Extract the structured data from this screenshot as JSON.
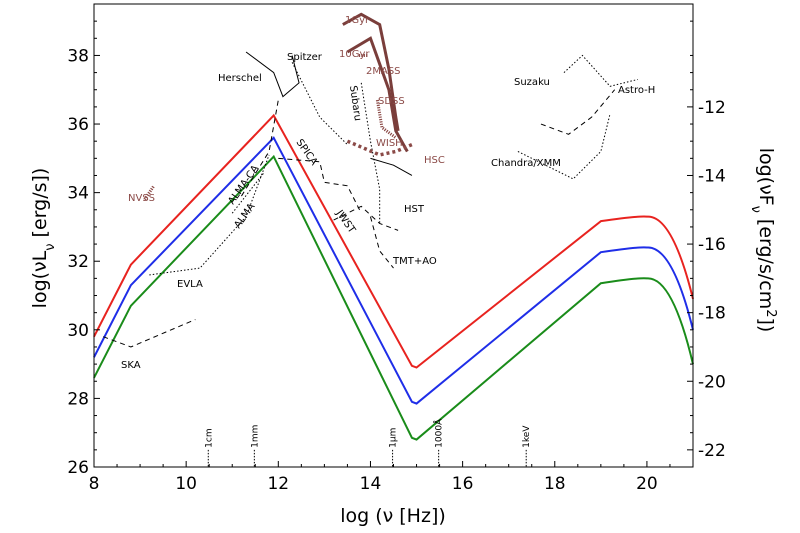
{
  "chart_data": {
    "type": "line",
    "xlabel": "log (ν [Hz])",
    "ylabel": "log(νL",
    "ylabel_sub": "ν",
    "ylabel_tail": " [erg/s])",
    "y2label": "log(νF",
    "y2label_sub": "ν",
    "y2label_tail": " [erg/s/cm",
    "y2label_sup": "2",
    "y2label_end": "])",
    "xlim": [
      8,
      21
    ],
    "ylim": [
      26,
      39.5
    ],
    "y2lim_note": "right axis offset by -48.5",
    "x_ticks": [
      {
        "v": 8,
        "label": "8"
      },
      {
        "v": 10,
        "label": "10"
      },
      {
        "v": 12,
        "label": "12"
      },
      {
        "v": 14,
        "label": "14"
      },
      {
        "v": 16,
        "label": "16"
      },
      {
        "v": 18,
        "label": "18"
      },
      {
        "v": 20,
        "label": "20"
      }
    ],
    "y_ticks": [
      {
        "v": 26,
        "label": "26"
      },
      {
        "v": 28,
        "label": "28"
      },
      {
        "v": 30,
        "label": "30"
      },
      {
        "v": 32,
        "label": "32"
      },
      {
        "v": 34,
        "label": "34"
      },
      {
        "v": 36,
        "label": "36"
      },
      {
        "v": 38,
        "label": "38"
      }
    ],
    "y2_ticks": [
      {
        "v": 26.5,
        "label": "-22"
      },
      {
        "v": 28.5,
        "label": "-20"
      },
      {
        "v": 30.5,
        "label": "-18"
      },
      {
        "v": 32.5,
        "label": "-16"
      },
      {
        "v": 34.5,
        "label": "-14"
      },
      {
        "v": 36.5,
        "label": "-12"
      }
    ],
    "wavelength_marks": [
      {
        "v": 10.48,
        "label": "1cm"
      },
      {
        "v": 11.48,
        "label": "1mm"
      },
      {
        "v": 14.48,
        "label": "1μm"
      },
      {
        "v": 15.48,
        "label": "1000Å"
      },
      {
        "v": 17.38,
        "label": "1keV"
      }
    ],
    "series": [
      {
        "color": "#e8231f",
        "x": [
          8,
          8.8,
          11.9,
          14.9,
          15.0,
          20.0,
          21.0
        ],
        "y": [
          29.8,
          31.9,
          36.25,
          28.95,
          28.9,
          33.3,
          30.9
        ]
      },
      {
        "color": "#1f2ee8",
        "x": [
          8,
          8.8,
          11.9,
          14.9,
          15.0,
          20.0,
          21.0
        ],
        "y": [
          29.2,
          31.3,
          35.6,
          27.9,
          27.85,
          32.4,
          30.0
        ]
      },
      {
        "color": "#1a8c1a",
        "x": [
          8,
          8.8,
          11.9,
          14.9,
          15.0,
          20.0,
          21.0
        ],
        "y": [
          28.6,
          30.7,
          35.05,
          26.85,
          26.8,
          31.5,
          29.0
        ]
      }
    ],
    "instruments": [
      {
        "label": "SKA",
        "style": "dashed",
        "pts": [
          [
            8.2,
            29.8
          ],
          [
            8.8,
            29.5
          ],
          [
            10.2,
            30.3
          ]
        ]
      },
      {
        "label": "EVLA",
        "style": "dotted",
        "pts": [
          [
            9.2,
            31.6
          ],
          [
            10.3,
            31.8
          ],
          [
            11.3,
            33.3
          ],
          [
            11.8,
            35.1
          ]
        ]
      },
      {
        "label": "ALMA",
        "style": "dashed",
        "pts": [
          [
            11.2,
            33.9
          ],
          [
            11.8,
            35.2
          ],
          [
            12.0,
            36.7
          ]
        ]
      },
      {
        "label": "ALMA-CA",
        "style": "dotted",
        "pts": [
          [
            11.0,
            33.4
          ],
          [
            11.7,
            34.6
          ]
        ]
      },
      {
        "label": "Herschel",
        "style": "solid",
        "pts": [
          [
            11.3,
            38.1
          ],
          [
            11.9,
            37.5
          ],
          [
            12.1,
            36.8
          ],
          [
            12.45,
            37.2
          ],
          [
            12.3,
            38.0
          ]
        ]
      },
      {
        "label": "Spitzer",
        "style": "dotted",
        "pts": [
          [
            12.3,
            37.8
          ],
          [
            12.9,
            36.2
          ],
          [
            13.5,
            35.4
          ]
        ]
      },
      {
        "label": "Subaru",
        "style": "dotted",
        "pts": [
          [
            13.8,
            37.2
          ],
          [
            14.0,
            35.5
          ],
          [
            14.2,
            34.1
          ],
          [
            14.2,
            33.1
          ]
        ]
      },
      {
        "label": "HST",
        "style": "solid",
        "pts": [
          [
            14.0,
            35.0
          ],
          [
            14.5,
            34.8
          ],
          [
            14.9,
            34.5
          ]
        ]
      },
      {
        "label": "SPICA",
        "style": "dashed",
        "pts": [
          [
            12.0,
            35.0
          ],
          [
            12.9,
            34.9
          ],
          [
            13.0,
            34.3
          ],
          [
            13.5,
            34.2
          ],
          [
            13.8,
            33.4
          ]
        ]
      },
      {
        "label": "JWST",
        "style": "dashed",
        "pts": [
          [
            13.2,
            33.2
          ],
          [
            13.8,
            33.6
          ],
          [
            14.2,
            33.1
          ],
          [
            14.6,
            32.9
          ]
        ]
      },
      {
        "label": "TMT+AO",
        "style": "dashed",
        "pts": [
          [
            14.0,
            33.3
          ],
          [
            14.2,
            32.3
          ],
          [
            14.5,
            31.8
          ]
        ]
      },
      {
        "label": "Chandra/XMM",
        "style": "dotted",
        "pts": [
          [
            17.2,
            35.2
          ],
          [
            18.4,
            34.4
          ],
          [
            19.0,
            35.2
          ],
          [
            19.2,
            36.3
          ]
        ]
      },
      {
        "label": "Suzaku",
        "style": "dotted",
        "pts": [
          [
            18.2,
            37.5
          ],
          [
            18.6,
            38.0
          ],
          [
            19.2,
            37.1
          ],
          [
            19.8,
            37.3
          ]
        ]
      },
      {
        "label": "Astro-H",
        "style": "dashed",
        "pts": [
          [
            17.7,
            36.0
          ],
          [
            18.3,
            35.7
          ],
          [
            18.8,
            36.2
          ],
          [
            19.3,
            37.0
          ]
        ]
      }
    ],
    "surveys": [
      {
        "label": "NVSS",
        "color": "#8b4a47"
      },
      {
        "label": "1Gyr",
        "color": "#7a3e3b"
      },
      {
        "label": "10Gyr",
        "color": "#7a3e3b"
      },
      {
        "label": "2MASS",
        "color": "#8b4a47"
      },
      {
        "label": "SDSS",
        "color": "#8b4a47"
      },
      {
        "label": "WISH",
        "color": "#8b4a47"
      },
      {
        "label": "HSC",
        "color": "#8b4a47"
      }
    ],
    "track_1gyr": [
      [
        13.4,
        38.9
      ],
      [
        13.8,
        39.2
      ],
      [
        14.2,
        38.9
      ],
      [
        14.4,
        37.6
      ],
      [
        14.55,
        36.2
      ],
      [
        14.6,
        35.8
      ]
    ],
    "track_10gyr": [
      [
        13.5,
        38.1
      ],
      [
        14.0,
        38.5
      ],
      [
        14.4,
        37.0
      ],
      [
        14.55,
        35.8
      ],
      [
        14.8,
        35.2
      ]
    ],
    "label_texts": {
      "ska": "SKA",
      "evla": "EVLA",
      "alma": "ALMA",
      "alma_ca": "ALMA-CA",
      "herschel": "Herschel",
      "spitzer": "Spitzer",
      "subaru": "Subaru",
      "hst": "HST",
      "spica": "SPICA",
      "jwst": "JWST",
      "tmt": "TMT+AO",
      "chandra": "Chandra/XMM",
      "suzaku": "Suzaku",
      "astroh": "Astro-H",
      "nvss": "NVSS",
      "gyr1": "1Gyr",
      "gyr10": "10Gyr",
      "twomass": "2MASS",
      "sdss": "SDSS",
      "wish": "WISH",
      "hsc": "HSC"
    }
  }
}
